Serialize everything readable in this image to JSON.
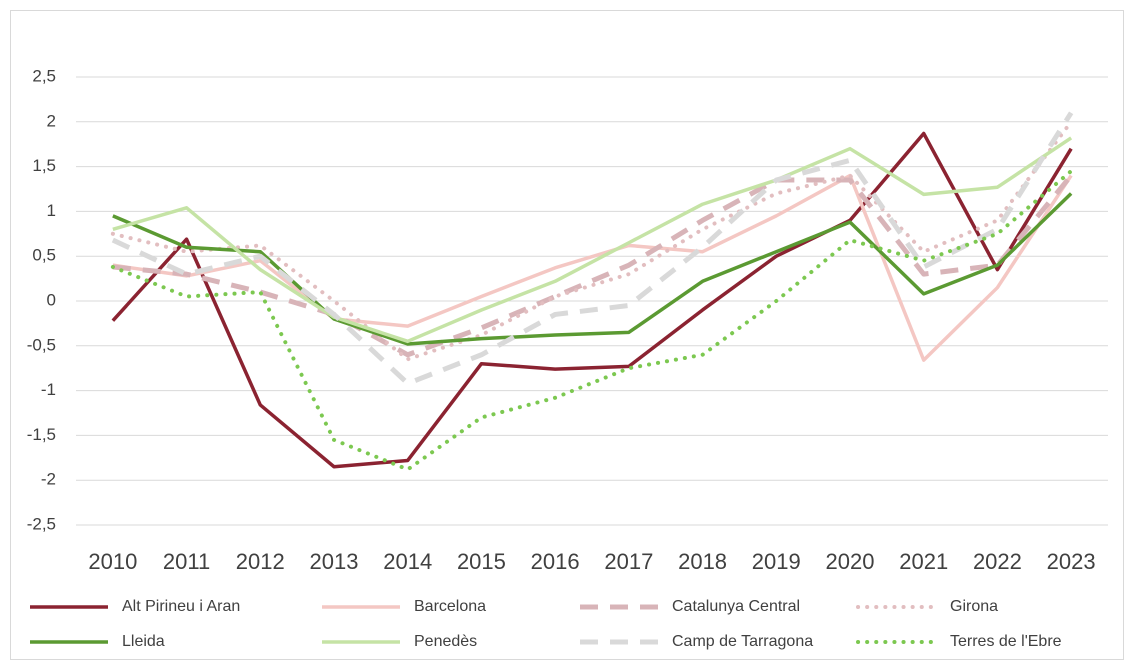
{
  "chart_data": {
    "type": "line",
    "categories": [
      "2010",
      "2011",
      "2012",
      "2013",
      "2014",
      "2015",
      "2016",
      "2017",
      "2018",
      "2019",
      "2020",
      "2021",
      "2022",
      "2023"
    ],
    "ylim": [
      -2.5,
      3
    ],
    "yticks": [
      {
        "value": -2.5,
        "label": "-2,5"
      },
      -2,
      {
        "value": -1.5,
        "label": "-1,5"
      },
      -1,
      {
        "value": -0.5,
        "label": "-0,5"
      },
      0,
      {
        "value": 0.5,
        "label": "0,5"
      },
      1,
      {
        "value": 1.5,
        "label": "1,5"
      },
      2,
      {
        "value": 2.5,
        "label": "2,5"
      }
    ],
    "grid": true,
    "legend": "bottom",
    "series": [
      {
        "name": "Alt Pirineu i Aran",
        "color": "#8b2331",
        "dash": "solid",
        "values": [
          -0.22,
          0.69,
          -1.16,
          -1.85,
          -1.78,
          -0.7,
          -0.76,
          -0.73,
          -0.1,
          0.5,
          0.9,
          1.87,
          0.35,
          1.7
        ]
      },
      {
        "name": "Barcelona",
        "color": "#f4c7c3",
        "dash": "solid",
        "values": [
          0.4,
          0.28,
          0.45,
          -0.2,
          -0.28,
          0.05,
          0.37,
          0.62,
          0.55,
          0.95,
          1.4,
          -0.66,
          0.15,
          1.4
        ]
      },
      {
        "name": "Catalunya Central",
        "color": "#d8b4b8",
        "dash": "dashed",
        "values": [
          0.38,
          0.3,
          0.1,
          -0.15,
          -0.6,
          -0.3,
          0.05,
          0.4,
          0.9,
          1.35,
          1.35,
          0.3,
          0.4,
          1.4
        ]
      },
      {
        "name": "Girona",
        "color": "#e2bec0",
        "dash": "dotted",
        "values": [
          0.75,
          0.55,
          0.62,
          0.0,
          -0.65,
          -0.38,
          0.05,
          0.3,
          0.8,
          1.2,
          1.4,
          0.55,
          0.9,
          2.0
        ]
      },
      {
        "name": "Lleida",
        "color": "#5b9a32",
        "dash": "solid",
        "values": [
          0.95,
          0.6,
          0.55,
          -0.2,
          -0.48,
          -0.42,
          -0.38,
          -0.35,
          0.22,
          0.55,
          0.88,
          0.08,
          0.4,
          1.2
        ]
      },
      {
        "name": "Penedès",
        "color": "#c5e3a5",
        "dash": "solid",
        "values": [
          0.8,
          1.04,
          0.35,
          -0.18,
          -0.45,
          -0.1,
          0.22,
          0.65,
          1.08,
          1.35,
          1.7,
          1.19,
          1.27,
          1.82
        ]
      },
      {
        "name": "Camp de Tarragona",
        "color": "#d9d9d9",
        "dash": "dashed",
        "values": [
          0.68,
          0.3,
          0.5,
          -0.15,
          -0.92,
          -0.6,
          -0.15,
          -0.05,
          0.6,
          1.35,
          1.57,
          0.38,
          0.8,
          2.1
        ]
      },
      {
        "name": "Terres de l'Ebre",
        "color": "#7cc850",
        "dash": "dotted",
        "values": [
          0.38,
          0.05,
          0.1,
          -1.55,
          -1.88,
          -1.3,
          -1.08,
          -0.75,
          -0.6,
          0.0,
          0.68,
          0.45,
          0.75,
          1.45
        ]
      }
    ]
  }
}
